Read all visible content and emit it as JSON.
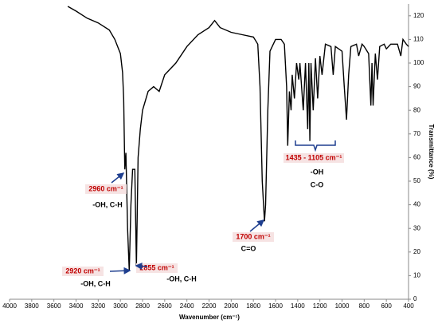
{
  "chart_data": {
    "type": "line",
    "x_label": "Wavenumber (cm⁻¹)",
    "y_label": "Transmittance (%)",
    "x": [
      3475,
      3400,
      3300,
      3200,
      3100,
      3050,
      3000,
      2980,
      2970,
      2960,
      2950,
      2935,
      2920,
      2905,
      2890,
      2870,
      2855,
      2840,
      2820,
      2800,
      2750,
      2700,
      2650,
      2600,
      2500,
      2400,
      2300,
      2200,
      2150,
      2100,
      2000,
      1900,
      1800,
      1760,
      1740,
      1720,
      1700,
      1690,
      1670,
      1650,
      1600,
      1550,
      1520,
      1500,
      1490,
      1475,
      1460,
      1450,
      1430,
      1410,
      1390,
      1380,
      1350,
      1330,
      1310,
      1300,
      1290,
      1280,
      1260,
      1240,
      1220,
      1200,
      1180,
      1150,
      1100,
      1080,
      1060,
      1000,
      980,
      960,
      940,
      920,
      870,
      850,
      820,
      800,
      760,
      740,
      730,
      720,
      700,
      680,
      660,
      620,
      600,
      560,
      500,
      470,
      450,
      420,
      400
    ],
    "series": [
      {
        "name": "spectrum",
        "color": "#000000",
        "values": [
          124,
          122,
          119,
          117,
          114,
          110,
          104,
          96,
          85,
          55,
          62,
          30,
          12,
          40,
          55,
          55,
          14,
          60,
          72,
          80,
          88,
          90,
          88,
          95,
          100,
          107,
          112,
          115,
          118,
          115,
          113,
          112,
          111,
          108,
          90,
          50,
          33,
          40,
          80,
          105,
          110,
          110,
          108,
          90,
          65,
          88,
          80,
          95,
          85,
          100,
          93,
          100,
          80,
          100,
          72,
          100,
          67,
          100,
          80,
          102,
          85,
          103,
          95,
          108,
          107,
          95,
          107,
          105,
          90,
          76,
          95,
          107,
          108,
          103,
          108,
          107,
          104,
          82,
          100,
          82,
          104,
          93,
          107,
          108,
          106,
          108,
          108,
          103,
          110,
          108,
          107
        ]
      }
    ],
    "xlim": [
      4000,
      400
    ],
    "xticks": [
      4000,
      3800,
      3600,
      3400,
      3200,
      3000,
      2800,
      2600,
      2400,
      2200,
      2000,
      1800,
      1600,
      1400,
      1200,
      1000,
      800,
      600,
      400
    ],
    "ylim": [
      0,
      125
    ],
    "yticks": [
      0,
      10,
      20,
      30,
      40,
      50,
      60,
      70,
      80,
      90,
      100,
      110,
      120
    ],
    "annotations": [
      {
        "peak": "2960 cm⁻¹",
        "group": "-OH, C-H"
      },
      {
        "peak": "2920 cm⁻¹",
        "group": "-OH, C-H"
      },
      {
        "peak": "2855 cm⁻¹",
        "group": "-OH, C-H"
      },
      {
        "peak": "1700 cm⁻¹",
        "group": "C=O"
      },
      {
        "peak": "1435 - 1105 cm⁻¹",
        "group": "-OH",
        "group2": "C-O"
      }
    ]
  }
}
